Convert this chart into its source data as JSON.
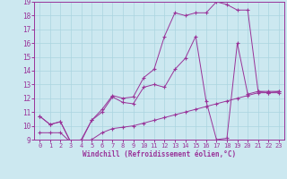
{
  "xlabel": "Windchill (Refroidissement éolien,°C)",
  "bg_color": "#cce8f0",
  "line_color": "#993399",
  "grid_color": "#aad4e0",
  "xlim": [
    -0.5,
    23.5
  ],
  "ylim": [
    9,
    19
  ],
  "xticks": [
    0,
    1,
    2,
    3,
    4,
    5,
    6,
    7,
    8,
    9,
    10,
    11,
    12,
    13,
    14,
    15,
    16,
    17,
    18,
    19,
    20,
    21,
    22,
    23
  ],
  "yticks": [
    9,
    10,
    11,
    12,
    13,
    14,
    15,
    16,
    17,
    18,
    19
  ],
  "line1_x": [
    0,
    1,
    2,
    3,
    4,
    5,
    6,
    7,
    8,
    9,
    10,
    11,
    12,
    13,
    14,
    15,
    16,
    17,
    18,
    19,
    20,
    21,
    22,
    23
  ],
  "line1_y": [
    10.7,
    10.1,
    10.3,
    8.8,
    8.9,
    10.4,
    11.0,
    12.1,
    11.7,
    11.6,
    12.8,
    13.0,
    12.8,
    14.1,
    14.9,
    16.5,
    11.8,
    9.0,
    9.1,
    16.0,
    12.3,
    12.5,
    12.4,
    12.4
  ],
  "line2_x": [
    0,
    1,
    2,
    3,
    4,
    5,
    6,
    7,
    8,
    9,
    10,
    11,
    12,
    13,
    14,
    15,
    16,
    17,
    18,
    19,
    20,
    21,
    22,
    23
  ],
  "line2_y": [
    10.7,
    10.1,
    10.3,
    8.8,
    9.0,
    10.4,
    11.2,
    12.2,
    12.0,
    12.1,
    13.5,
    14.1,
    16.5,
    18.2,
    18.0,
    18.2,
    18.2,
    19.0,
    18.8,
    18.4,
    18.4,
    12.5,
    12.5,
    12.5
  ],
  "line3_x": [
    0,
    1,
    2,
    3,
    4,
    5,
    6,
    7,
    8,
    9,
    10,
    11,
    12,
    13,
    14,
    15,
    16,
    17,
    18,
    19,
    20,
    21,
    22,
    23
  ],
  "line3_y": [
    9.5,
    9.5,
    9.5,
    8.8,
    8.8,
    9.0,
    9.5,
    9.8,
    9.9,
    10.0,
    10.2,
    10.4,
    10.6,
    10.8,
    11.0,
    11.2,
    11.4,
    11.6,
    11.8,
    12.0,
    12.2,
    12.4,
    12.4,
    12.5
  ]
}
